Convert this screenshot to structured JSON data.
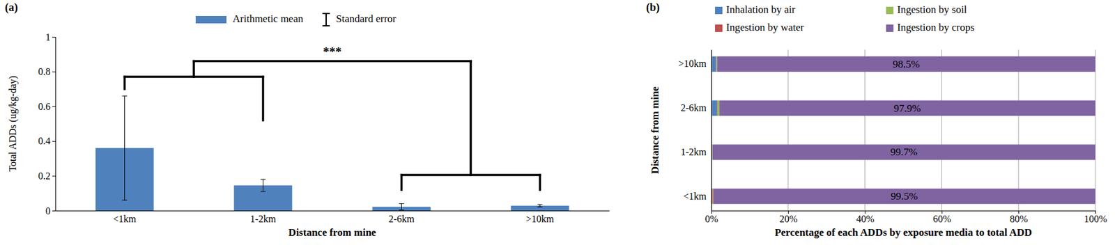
{
  "chart_data": [
    {
      "type": "bar",
      "title": "(a)",
      "x_label": "Distance from mine",
      "y_label": "Total ADDs (ug/kg-day)",
      "categories": [
        "<1km",
        "1-2km",
        "2-6km",
        ">10km"
      ],
      "series": [
        {
          "name": "Arithmetic mean",
          "color": "#4f81bd",
          "values": [
            0.36,
            0.145,
            0.022,
            0.028
          ],
          "errors": [
            0.3,
            0.035,
            0.018,
            0.007
          ],
          "error_name": "Standard error"
        }
      ],
      "ylim": [
        0,
        1
      ],
      "yticks": [
        0,
        0.2,
        0.4,
        0.6,
        0.8,
        1
      ],
      "grid": false,
      "legend": "top",
      "annotations": [
        {
          "text": "***"
        }
      ]
    },
    {
      "type": "bar",
      "orientation": "horizontal",
      "stacked": true,
      "title": "(b)",
      "x_label": "Percentage of each ADDs by exposure media to total ADD",
      "y_label": "Distance from mine",
      "categories": [
        "<1km",
        "1-2km",
        "2-6km",
        ">10km"
      ],
      "series": [
        {
          "name": "Inhalation by air",
          "color": "#4f81bd",
          "values": [
            0.1,
            0.1,
            1.5,
            1.2
          ]
        },
        {
          "name": "Ingestion by water",
          "color": "#c0504d",
          "values": [
            0.3,
            0.1,
            0.1,
            0.1
          ]
        },
        {
          "name": "Ingestion by soil",
          "color": "#9bbb59",
          "values": [
            0.1,
            0.1,
            0.5,
            0.2
          ]
        },
        {
          "name": "Ingestion by crops",
          "color": "#8064a2",
          "values": [
            99.5,
            99.7,
            97.9,
            98.5
          ],
          "data_labels": true,
          "value_labels": [
            "99.5%",
            "99.7%",
            "97.9%",
            "98.5%"
          ]
        }
      ],
      "xlim": [
        0,
        100
      ],
      "xticks": [
        {
          "value": 0,
          "label": "0%"
        },
        {
          "value": 20,
          "label": "20%"
        },
        {
          "value": 40,
          "label": "40%"
        },
        {
          "value": 60,
          "label": "60%"
        },
        {
          "value": 80,
          "label": "80%"
        },
        {
          "value": 100,
          "label": "100%"
        }
      ],
      "grid": true,
      "legend": "top"
    }
  ]
}
